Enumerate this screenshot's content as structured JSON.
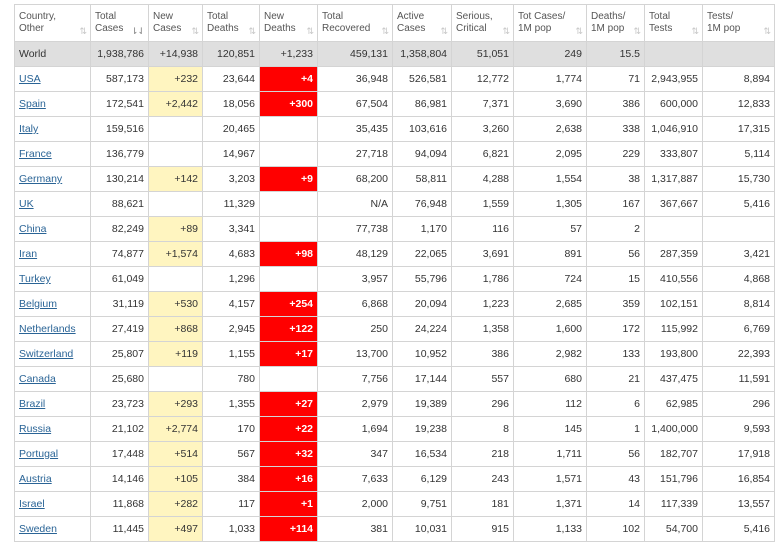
{
  "columns": [
    {
      "label1": "Country,",
      "label2": "Other",
      "sort": "updown",
      "active": false
    },
    {
      "label1": "Total",
      "label2": "Cases",
      "sort": "down",
      "active": true
    },
    {
      "label1": "New",
      "label2": "Cases",
      "sort": "updown",
      "active": false
    },
    {
      "label1": "Total",
      "label2": "Deaths",
      "sort": "updown",
      "active": false
    },
    {
      "label1": "New",
      "label2": "Deaths",
      "sort": "updown",
      "active": false
    },
    {
      "label1": "Total",
      "label2": "Recovered",
      "sort": "updown",
      "active": false
    },
    {
      "label1": "Active",
      "label2": "Cases",
      "sort": "updown",
      "active": false
    },
    {
      "label1": "Serious,",
      "label2": "Critical",
      "sort": "updown",
      "active": false
    },
    {
      "label1": "Tot Cases/",
      "label2": "1M pop",
      "sort": "updown",
      "active": false
    },
    {
      "label1": "Deaths/",
      "label2": "1M pop",
      "sort": "updown",
      "active": false
    },
    {
      "label1": "Total",
      "label2": "Tests",
      "sort": "updown",
      "active": false
    },
    {
      "label1": "Tests/",
      "label2": "1M pop",
      "sort": "updown",
      "active": false
    }
  ],
  "sort_glyphs": {
    "updown": "⇅",
    "down": "⇂⇃"
  },
  "world": {
    "country": "World",
    "total_cases": "1,938,786",
    "new_cases": "+14,938",
    "total_deaths": "120,851",
    "new_deaths": "+1,233",
    "total_recovered": "459,131",
    "active_cases": "1,358,804",
    "serious": "51,051",
    "cases_per_m": "249",
    "deaths_per_m": "15.5",
    "total_tests": "",
    "tests_per_m": ""
  },
  "rows": [
    {
      "country": "USA",
      "total_cases": "587,173",
      "new_cases": "+232",
      "total_deaths": "23,644",
      "new_deaths": "+4",
      "total_recovered": "36,948",
      "active_cases": "526,581",
      "serious": "12,772",
      "cases_per_m": "1,774",
      "deaths_per_m": "71",
      "total_tests": "2,943,955",
      "tests_per_m": "8,894"
    },
    {
      "country": "Spain",
      "total_cases": "172,541",
      "new_cases": "+2,442",
      "total_deaths": "18,056",
      "new_deaths": "+300",
      "total_recovered": "67,504",
      "active_cases": "86,981",
      "serious": "7,371",
      "cases_per_m": "3,690",
      "deaths_per_m": "386",
      "total_tests": "600,000",
      "tests_per_m": "12,833"
    },
    {
      "country": "Italy",
      "total_cases": "159,516",
      "new_cases": "",
      "total_deaths": "20,465",
      "new_deaths": "",
      "total_recovered": "35,435",
      "active_cases": "103,616",
      "serious": "3,260",
      "cases_per_m": "2,638",
      "deaths_per_m": "338",
      "total_tests": "1,046,910",
      "tests_per_m": "17,315"
    },
    {
      "country": "France",
      "total_cases": "136,779",
      "new_cases": "",
      "total_deaths": "14,967",
      "new_deaths": "",
      "total_recovered": "27,718",
      "active_cases": "94,094",
      "serious": "6,821",
      "cases_per_m": "2,095",
      "deaths_per_m": "229",
      "total_tests": "333,807",
      "tests_per_m": "5,114"
    },
    {
      "country": "Germany",
      "total_cases": "130,214",
      "new_cases": "+142",
      "total_deaths": "3,203",
      "new_deaths": "+9",
      "total_recovered": "68,200",
      "active_cases": "58,811",
      "serious": "4,288",
      "cases_per_m": "1,554",
      "deaths_per_m": "38",
      "total_tests": "1,317,887",
      "tests_per_m": "15,730"
    },
    {
      "country": "UK",
      "total_cases": "88,621",
      "new_cases": "",
      "total_deaths": "11,329",
      "new_deaths": "",
      "total_recovered": "N/A",
      "active_cases": "76,948",
      "serious": "1,559",
      "cases_per_m": "1,305",
      "deaths_per_m": "167",
      "total_tests": "367,667",
      "tests_per_m": "5,416"
    },
    {
      "country": "China",
      "total_cases": "82,249",
      "new_cases": "+89",
      "total_deaths": "3,341",
      "new_deaths": "",
      "total_recovered": "77,738",
      "active_cases": "1,170",
      "serious": "116",
      "cases_per_m": "57",
      "deaths_per_m": "2",
      "total_tests": "",
      "tests_per_m": ""
    },
    {
      "country": "Iran",
      "total_cases": "74,877",
      "new_cases": "+1,574",
      "total_deaths": "4,683",
      "new_deaths": "+98",
      "total_recovered": "48,129",
      "active_cases": "22,065",
      "serious": "3,691",
      "cases_per_m": "891",
      "deaths_per_m": "56",
      "total_tests": "287,359",
      "tests_per_m": "3,421"
    },
    {
      "country": "Turkey",
      "total_cases": "61,049",
      "new_cases": "",
      "total_deaths": "1,296",
      "new_deaths": "",
      "total_recovered": "3,957",
      "active_cases": "55,796",
      "serious": "1,786",
      "cases_per_m": "724",
      "deaths_per_m": "15",
      "total_tests": "410,556",
      "tests_per_m": "4,868"
    },
    {
      "country": "Belgium",
      "total_cases": "31,119",
      "new_cases": "+530",
      "total_deaths": "4,157",
      "new_deaths": "+254",
      "total_recovered": "6,868",
      "active_cases": "20,094",
      "serious": "1,223",
      "cases_per_m": "2,685",
      "deaths_per_m": "359",
      "total_tests": "102,151",
      "tests_per_m": "8,814"
    },
    {
      "country": "Netherlands",
      "total_cases": "27,419",
      "new_cases": "+868",
      "total_deaths": "2,945",
      "new_deaths": "+122",
      "total_recovered": "250",
      "active_cases": "24,224",
      "serious": "1,358",
      "cases_per_m": "1,600",
      "deaths_per_m": "172",
      "total_tests": "115,992",
      "tests_per_m": "6,769"
    },
    {
      "country": "Switzerland",
      "total_cases": "25,807",
      "new_cases": "+119",
      "total_deaths": "1,155",
      "new_deaths": "+17",
      "total_recovered": "13,700",
      "active_cases": "10,952",
      "serious": "386",
      "cases_per_m": "2,982",
      "deaths_per_m": "133",
      "total_tests": "193,800",
      "tests_per_m": "22,393"
    },
    {
      "country": "Canada",
      "total_cases": "25,680",
      "new_cases": "",
      "total_deaths": "780",
      "new_deaths": "",
      "total_recovered": "7,756",
      "active_cases": "17,144",
      "serious": "557",
      "cases_per_m": "680",
      "deaths_per_m": "21",
      "total_tests": "437,475",
      "tests_per_m": "11,591"
    },
    {
      "country": "Brazil",
      "total_cases": "23,723",
      "new_cases": "+293",
      "total_deaths": "1,355",
      "new_deaths": "+27",
      "total_recovered": "2,979",
      "active_cases": "19,389",
      "serious": "296",
      "cases_per_m": "112",
      "deaths_per_m": "6",
      "total_tests": "62,985",
      "tests_per_m": "296"
    },
    {
      "country": "Russia",
      "total_cases": "21,102",
      "new_cases": "+2,774",
      "total_deaths": "170",
      "new_deaths": "+22",
      "total_recovered": "1,694",
      "active_cases": "19,238",
      "serious": "8",
      "cases_per_m": "145",
      "deaths_per_m": "1",
      "total_tests": "1,400,000",
      "tests_per_m": "9,593"
    },
    {
      "country": "Portugal",
      "total_cases": "17,448",
      "new_cases": "+514",
      "total_deaths": "567",
      "new_deaths": "+32",
      "total_recovered": "347",
      "active_cases": "16,534",
      "serious": "218",
      "cases_per_m": "1,711",
      "deaths_per_m": "56",
      "total_tests": "182,707",
      "tests_per_m": "17,918"
    },
    {
      "country": "Austria",
      "total_cases": "14,146",
      "new_cases": "+105",
      "total_deaths": "384",
      "new_deaths": "+16",
      "total_recovered": "7,633",
      "active_cases": "6,129",
      "serious": "243",
      "cases_per_m": "1,571",
      "deaths_per_m": "43",
      "total_tests": "151,796",
      "tests_per_m": "16,854"
    },
    {
      "country": "Israel",
      "total_cases": "11,868",
      "new_cases": "+282",
      "total_deaths": "117",
      "new_deaths": "+1",
      "total_recovered": "2,000",
      "active_cases": "9,751",
      "serious": "181",
      "cases_per_m": "1,371",
      "deaths_per_m": "14",
      "total_tests": "117,339",
      "tests_per_m": "13,557"
    },
    {
      "country": "Sweden",
      "total_cases": "11,445",
      "new_cases": "+497",
      "total_deaths": "1,033",
      "new_deaths": "+114",
      "total_recovered": "381",
      "active_cases": "10,031",
      "serious": "915",
      "cases_per_m": "1,133",
      "deaths_per_m": "102",
      "total_tests": "54,700",
      "tests_per_m": "5,416"
    }
  ],
  "colors": {
    "new_cases_bg": "#fff5c0",
    "new_deaths_bg": "#ff0000",
    "world_bg": "#dfdfdf",
    "link": "#2a6496"
  }
}
